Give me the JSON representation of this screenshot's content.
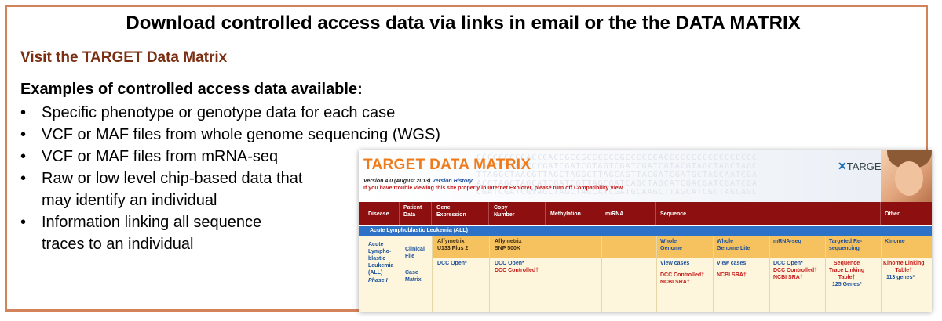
{
  "slide": {
    "title": "Download controlled access data via links in email or the the DATA MATRIX",
    "link_text": "Visit the TARGET Data Matrix",
    "examples_heading": "Examples of controlled access data available:",
    "bullet_glyph": "•",
    "bullets": [
      {
        "text": "Specific phenotype or genotype data for each case"
      },
      {
        "text": "VCF or MAF files from whole genome sequencing (WGS)"
      },
      {
        "text": "VCF or MAF files from mRNA-seq"
      },
      {
        "text": "Raw or low level chip-based data that",
        "cont": "may identify an individual"
      },
      {
        "text": "Information linking all sequence",
        "cont": "traces to an individual"
      }
    ]
  },
  "matrix": {
    "title": "TARGET DATA MATRIX",
    "version": "Version 4.0 (August 2013)",
    "version_history": "Version History",
    "warning": "If you have trouble viewing this site properly in Internet Explorer, please turn off Compatibility View",
    "logo_text": "TARGET",
    "bg_letters": "CCCCCCCCCACCCACCGCCGCCCCCCGCCCCCCACCCCCCCCCCCCCCCCC\nGATCCTGCATCCGATCGATCGTAGTCGATCGATCGTACGTAGCTAGCTAGC\nTTAGGCTAACGTTAGCTAGGCTTAGCAGTTACGATCGATGCTAGCAATCGA\nACGTAGCTAGCATCGATCGTTAGCGATCAGCTAGCATCGACGATCGATCGA\nCGATCGATCGTAGCTAGCTAGCATCGATGCAAGCTTAGCATCGCTAGCAGC",
    "headers": {
      "disease": "Disease",
      "patient_data": "Patient\nData",
      "gene_expression": "Gene\nExpression",
      "copy_number": "Copy\nNumber",
      "methylation": "Methylation",
      "mirna": "miRNA",
      "sequence": "Sequence",
      "other": "Other"
    },
    "disease_row": "Acute Lymphoblastic Leukemia (ALL)",
    "disease_name": "Acute\nLympho-\nblastic\nLeukemia\n(ALL)",
    "phase": "Phase I",
    "patient_clinical": "Clinical\nFile",
    "patient_case": "Case\nMatrix",
    "gene_platform": "Affymetrix\nU133 Plus 2",
    "gene_link": "DCC Open*",
    "copy_platform": "Affymetrix\nSNP 500K",
    "copy_open": "DCC Open*",
    "copy_controlled": "DCC Controlled†",
    "seq_wg_label": "Whole\nGenome",
    "seq_wg_view": "View cases",
    "seq_wg_controlled": "DCC Controlled†",
    "seq_wg_sra": "NCBI SRA†",
    "seq_wgl_label": "Whole\nGenome Lite",
    "seq_wgl_view": "View cases",
    "seq_wgl_sra": "NCBI SRA†",
    "seq_mrna_label": "mRNA-seq",
    "seq_mrna_open": "DCC Open*",
    "seq_mrna_controlled": "DCC Controlled†",
    "seq_mrna_sra": "NCBI SRA†",
    "seq_target_label": "Targeted Re-\nsequencing",
    "seq_target_link": "Sequence\nTrace Linking\nTable†",
    "seq_target_genes": "125 Genes*",
    "other_label": "Kinome",
    "other_link": "Kinome Linking\nTable†",
    "other_genes": "113 genes*"
  },
  "colors": {
    "frame_border": "#d4825a",
    "link": "#7a2e12",
    "matrix_title": "#ef7a1a",
    "header_bg": "#8d0f0f",
    "disease_row_bg": "#2e72c7",
    "platform_bg": "#f6c15f"
  }
}
